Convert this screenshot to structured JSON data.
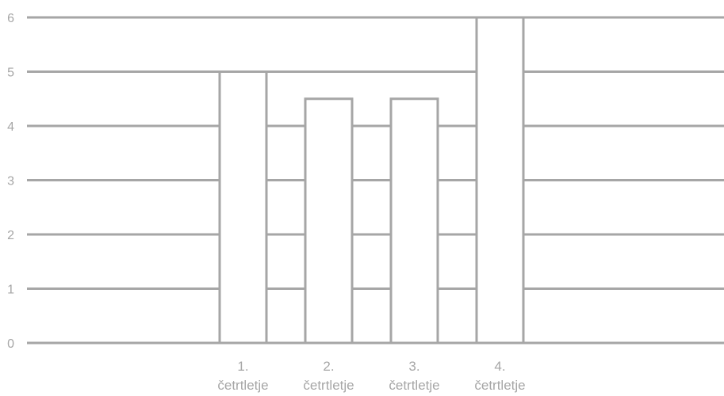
{
  "chart_data": {
    "type": "bar",
    "title": "",
    "xlabel": "",
    "ylabel": "",
    "categories": [
      [
        "1.",
        "četrtletje"
      ],
      [
        "2.",
        "četrtletje"
      ],
      [
        "3.",
        "četrtletje"
      ],
      [
        "4.",
        "četrtletje"
      ]
    ],
    "values": [
      5,
      4.5,
      4.5,
      6
    ],
    "ylim": [
      0,
      6
    ],
    "yticks": [
      "0",
      "1",
      "2",
      "3",
      "4",
      "5",
      "6"
    ],
    "grid": true,
    "legend": "none",
    "colors": {
      "bar_fill": "#ffffff",
      "bar_stroke": "#a6a6a6",
      "grid": "#a6a6a6",
      "text": "#a6a6a6"
    }
  }
}
